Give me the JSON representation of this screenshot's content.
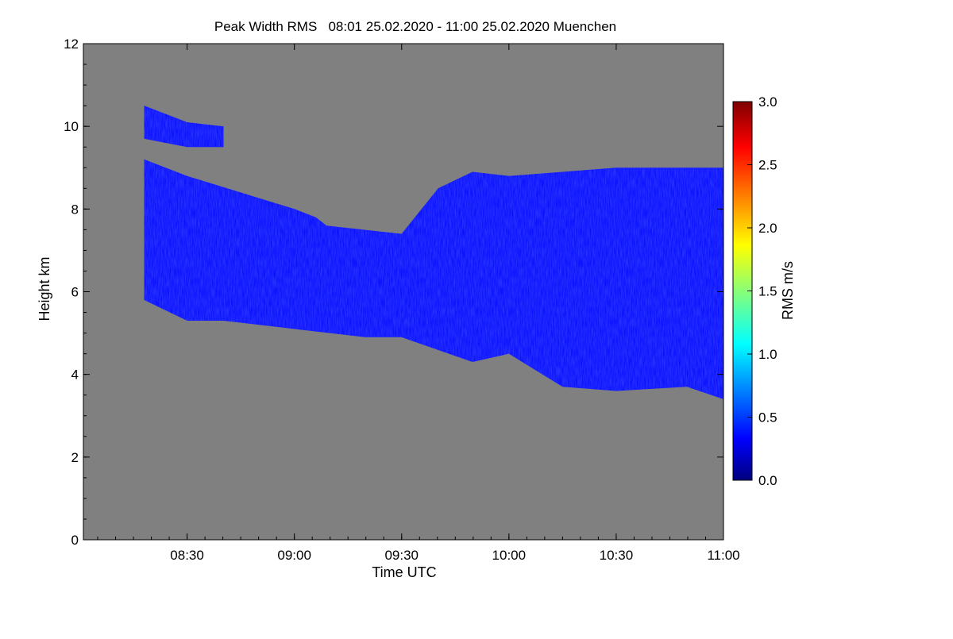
{
  "chart_data": {
    "type": "heatmap",
    "title": "Peak Width RMS   08:01 25.02.2020 - 11:00 25.02.2020 Muenchen",
    "xlabel": "Time UTC",
    "ylabel": "Height km",
    "x_range": [
      "08:01",
      "11:00"
    ],
    "x_ticks": [
      "08:30",
      "09:00",
      "09:30",
      "10:00",
      "10:30",
      "11:00"
    ],
    "ylim": [
      0,
      12
    ],
    "y_ticks": [
      "0",
      "2",
      "4",
      "6",
      "8",
      "10",
      "12"
    ],
    "colorbar": {
      "label": "RMS m/s",
      "range": [
        0.0,
        3.0
      ],
      "ticks": [
        "0.0",
        "0.5",
        "1.0",
        "1.5",
        "2.0",
        "2.5",
        "3.0"
      ],
      "colormap": "jet"
    },
    "background_color": "#808080",
    "layers": [
      {
        "name": "main-cloud",
        "top_km": [
          [
            8.3,
            9.2
          ],
          [
            8.5,
            8.8
          ],
          [
            9.0,
            8.0
          ],
          [
            9.1,
            7.8
          ],
          [
            9.15,
            7.6
          ],
          [
            9.5,
            7.4
          ],
          [
            9.67,
            8.5
          ],
          [
            9.83,
            8.9
          ],
          [
            10.0,
            8.8
          ],
          [
            10.5,
            9.0
          ],
          [
            11.0,
            9.0
          ]
        ],
        "bottom_km": [
          [
            8.3,
            5.8
          ],
          [
            8.5,
            5.3
          ],
          [
            8.67,
            5.3
          ],
          [
            9.0,
            5.1
          ],
          [
            9.33,
            4.9
          ],
          [
            9.5,
            4.9
          ],
          [
            9.83,
            4.3
          ],
          [
            10.0,
            4.5
          ],
          [
            10.25,
            3.7
          ],
          [
            10.5,
            3.6
          ],
          [
            10.83,
            3.7
          ],
          [
            11.0,
            3.4
          ]
        ],
        "rms_range": [
          0.1,
          0.8
        ]
      },
      {
        "name": "upper-cloud",
        "top_km": [
          [
            8.3,
            10.5
          ],
          [
            8.5,
            10.1
          ],
          [
            8.67,
            10.0
          ]
        ],
        "bottom_km": [
          [
            8.3,
            9.7
          ],
          [
            8.5,
            9.5
          ],
          [
            8.67,
            9.5
          ]
        ],
        "rms_range": [
          0.1,
          0.5
        ]
      }
    ]
  }
}
